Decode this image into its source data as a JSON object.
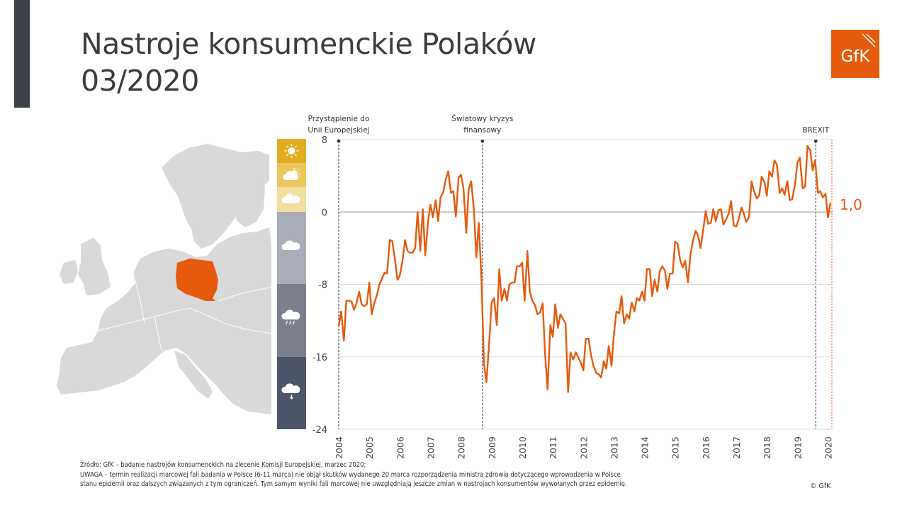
{
  "title_line1": "Nastroje konsumenckie Polaków",
  "title_line2": "03/2020",
  "logo_text": "GfK",
  "colors": {
    "brand": "#e55a0c",
    "dark_bar": "#3e4148",
    "map_gray": "#d9d9d9",
    "weather": [
      "#e1ad1e",
      "#ecc760",
      "#f3dea2",
      "#a9adb7",
      "#7b808c",
      "#4d5568"
    ]
  },
  "weather_icons": [
    "sun-icon",
    "sun-cloud-icon",
    "cloud-icon",
    "cloud-icon",
    "rain-cloud-icon",
    "storm-cloud-icon"
  ],
  "chart_data": {
    "type": "line",
    "ylim": [
      -24,
      8
    ],
    "yticks": [
      "8",
      "0",
      "-8",
      "-16",
      "-24"
    ],
    "xticks": [
      "2004",
      "2005",
      "2006",
      "2007",
      "2008",
      "2009",
      "2010",
      "2011",
      "2012",
      "2013",
      "2014",
      "2015",
      "2016",
      "2017",
      "2018",
      "2019",
      "2020"
    ],
    "annotations": [
      {
        "label_lines": [
          "Przystąpienie do",
          "Unii Europejskiej"
        ],
        "x": 2004.0
      },
      {
        "label_lines": [
          "Światowy kryzys",
          "finansowy"
        ],
        "x": 2008.7
      },
      {
        "label_lines": [
          "BREXIT"
        ],
        "x": 2019.6
      }
    ],
    "last_value_label": "1,0",
    "series": [
      {
        "color": "#e55a0c",
        "values": [
          [
            2004.0,
            -12.6
          ],
          [
            2004.08,
            -11.0
          ],
          [
            2004.17,
            -14.2
          ],
          [
            2004.25,
            -9.8
          ],
          [
            2004.33,
            -9.8
          ],
          [
            2004.42,
            -9.9
          ],
          [
            2004.5,
            -10.8
          ],
          [
            2004.58,
            -10.1
          ],
          [
            2004.67,
            -8.8
          ],
          [
            2004.75,
            -10.2
          ],
          [
            2004.83,
            -10.4
          ],
          [
            2004.92,
            -10.2
          ],
          [
            2005.0,
            -7.8
          ],
          [
            2005.08,
            -11.3
          ],
          [
            2005.17,
            -10.0
          ],
          [
            2005.25,
            -9.2
          ],
          [
            2005.33,
            -8.0
          ],
          [
            2005.42,
            -7.3
          ],
          [
            2005.5,
            -6.7
          ],
          [
            2005.58,
            -6.8
          ],
          [
            2005.67,
            -3.1
          ],
          [
            2005.75,
            -3.2
          ],
          [
            2005.83,
            -5.0
          ],
          [
            2005.92,
            -7.5
          ],
          [
            2006.0,
            -7.0
          ],
          [
            2006.08,
            -5.5
          ],
          [
            2006.17,
            -3.1
          ],
          [
            2006.25,
            -4.3
          ],
          [
            2006.33,
            -4.5
          ],
          [
            2006.42,
            -4.5
          ],
          [
            2006.5,
            -4.0
          ],
          [
            2006.58,
            0.0
          ],
          [
            2006.67,
            -4.3
          ],
          [
            2006.75,
            0.3
          ],
          [
            2006.83,
            -4.8
          ],
          [
            2006.92,
            -1.1
          ],
          [
            2007.0,
            0.8
          ],
          [
            2007.08,
            -0.6
          ],
          [
            2007.17,
            1.3
          ],
          [
            2007.25,
            -1.0
          ],
          [
            2007.33,
            1.6
          ],
          [
            2007.42,
            2.2
          ],
          [
            2007.5,
            3.6
          ],
          [
            2007.58,
            4.5
          ],
          [
            2007.67,
            2.1
          ],
          [
            2007.75,
            2.3
          ],
          [
            2007.83,
            -0.5
          ],
          [
            2007.92,
            3.8
          ],
          [
            2008.0,
            4.1
          ],
          [
            2008.08,
            2.6
          ],
          [
            2008.17,
            -2.3
          ],
          [
            2008.25,
            2.5
          ],
          [
            2008.33,
            3.4
          ],
          [
            2008.42,
            0.3
          ],
          [
            2008.5,
            -5.0
          ],
          [
            2008.58,
            -1.2
          ],
          [
            2008.67,
            -7.5
          ],
          [
            2008.75,
            -16.8
          ],
          [
            2008.83,
            -18.8
          ],
          [
            2008.92,
            -14.5
          ],
          [
            2009.0,
            -10.0
          ],
          [
            2009.08,
            -9.5
          ],
          [
            2009.17,
            -12.5
          ],
          [
            2009.25,
            -6.3
          ],
          [
            2009.33,
            -9.8
          ],
          [
            2009.42,
            -8.5
          ],
          [
            2009.5,
            -9.8
          ],
          [
            2009.58,
            -8.0
          ],
          [
            2009.67,
            -7.8
          ],
          [
            2009.75,
            -7.8
          ],
          [
            2009.83,
            -6.0
          ],
          [
            2009.92,
            -6.0
          ],
          [
            2010.0,
            -5.6
          ],
          [
            2010.08,
            -9.8
          ],
          [
            2010.17,
            -4.3
          ],
          [
            2010.25,
            -8.8
          ],
          [
            2010.33,
            -9.8
          ],
          [
            2010.42,
            -10.3
          ],
          [
            2010.5,
            -11.3
          ],
          [
            2010.58,
            -11.1
          ],
          [
            2010.67,
            -10.1
          ],
          [
            2010.75,
            -15.8
          ],
          [
            2010.83,
            -19.6
          ],
          [
            2010.92,
            -12.5
          ],
          [
            2011.0,
            -13.8
          ],
          [
            2011.08,
            -10.2
          ],
          [
            2011.17,
            -12.8
          ],
          [
            2011.25,
            -11.3
          ],
          [
            2011.33,
            -11.8
          ],
          [
            2011.42,
            -12.3
          ],
          [
            2011.5,
            -19.9
          ],
          [
            2011.58,
            -15.5
          ],
          [
            2011.67,
            -16.3
          ],
          [
            2011.75,
            -15.5
          ],
          [
            2011.83,
            -16.0
          ],
          [
            2011.92,
            -16.7
          ],
          [
            2012.0,
            -17.5
          ],
          [
            2012.08,
            -14.0
          ],
          [
            2012.17,
            -14.0
          ],
          [
            2012.25,
            -15.8
          ],
          [
            2012.33,
            -17.0
          ],
          [
            2012.42,
            -17.8
          ],
          [
            2012.5,
            -17.9
          ],
          [
            2012.58,
            -18.3
          ],
          [
            2012.67,
            -16.5
          ],
          [
            2012.75,
            -17.3
          ],
          [
            2012.83,
            -14.8
          ],
          [
            2012.92,
            -17.0
          ],
          [
            2013.0,
            -13.5
          ],
          [
            2013.08,
            -11.0
          ],
          [
            2013.17,
            -11.2
          ],
          [
            2013.25,
            -9.3
          ],
          [
            2013.33,
            -12.3
          ],
          [
            2013.42,
            -11.3
          ],
          [
            2013.5,
            -11.8
          ],
          [
            2013.58,
            -10.0
          ],
          [
            2013.67,
            -11.0
          ],
          [
            2013.75,
            -9.5
          ],
          [
            2013.83,
            -9.8
          ],
          [
            2013.92,
            -8.8
          ],
          [
            2014.0,
            -9.8
          ],
          [
            2014.08,
            -6.3
          ],
          [
            2014.17,
            -6.3
          ],
          [
            2014.25,
            -9.3
          ],
          [
            2014.33,
            -7.5
          ],
          [
            2014.42,
            -8.8
          ],
          [
            2014.5,
            -6.5
          ],
          [
            2014.58,
            -6.0
          ],
          [
            2014.67,
            -6.5
          ],
          [
            2014.75,
            -8.5
          ],
          [
            2014.83,
            -6.8
          ],
          [
            2014.92,
            -6.8
          ],
          [
            2015.0,
            -3.3
          ],
          [
            2015.08,
            -3.5
          ],
          [
            2015.17,
            -5.4
          ],
          [
            2015.25,
            -6.1
          ],
          [
            2015.33,
            -5.4
          ],
          [
            2015.42,
            -7.8
          ],
          [
            2015.5,
            -4.8
          ],
          [
            2015.58,
            -3.2
          ],
          [
            2015.67,
            -2.1
          ],
          [
            2015.75,
            -2.6
          ],
          [
            2015.83,
            -4.0
          ],
          [
            2015.92,
            -2.0
          ],
          [
            2016.0,
            0.1
          ],
          [
            2016.08,
            -1.3
          ],
          [
            2016.17,
            -1.2
          ],
          [
            2016.25,
            0.3
          ],
          [
            2016.33,
            -1.0
          ],
          [
            2016.42,
            0.2
          ],
          [
            2016.5,
            0.3
          ],
          [
            2016.58,
            -1.4
          ],
          [
            2016.67,
            -0.8
          ],
          [
            2016.75,
            -0.2
          ],
          [
            2016.83,
            1.2
          ],
          [
            2016.92,
            -1.5
          ],
          [
            2017.0,
            -1.6
          ],
          [
            2017.08,
            -0.8
          ],
          [
            2017.17,
            0.5
          ],
          [
            2017.25,
            -0.2
          ],
          [
            2017.33,
            -1.1
          ],
          [
            2017.42,
            -0.5
          ],
          [
            2017.5,
            3.4
          ],
          [
            2017.58,
            2.3
          ],
          [
            2017.67,
            1.5
          ],
          [
            2017.75,
            1.8
          ],
          [
            2017.83,
            3.9
          ],
          [
            2017.92,
            3.3
          ],
          [
            2018.0,
            1.8
          ],
          [
            2018.08,
            4.5
          ],
          [
            2018.17,
            3.9
          ],
          [
            2018.25,
            5.7
          ],
          [
            2018.33,
            5.2
          ],
          [
            2018.42,
            2.1
          ],
          [
            2018.5,
            2.6
          ],
          [
            2018.58,
            1.9
          ],
          [
            2018.67,
            3.4
          ],
          [
            2018.75,
            1.3
          ],
          [
            2018.83,
            1.4
          ],
          [
            2018.92,
            3.0
          ],
          [
            2019.0,
            5.5
          ],
          [
            2019.08,
            6.0
          ],
          [
            2019.17,
            2.6
          ],
          [
            2019.25,
            2.8
          ],
          [
            2019.33,
            7.3
          ],
          [
            2019.42,
            6.8
          ],
          [
            2019.5,
            4.6
          ],
          [
            2019.58,
            5.7
          ],
          [
            2019.67,
            2.1
          ],
          [
            2019.75,
            2.3
          ],
          [
            2019.83,
            1.6
          ],
          [
            2019.92,
            2.0
          ],
          [
            2020.0,
            -0.6
          ],
          [
            2020.08,
            1.0
          ]
        ]
      }
    ]
  },
  "footnote_lines": [
    "Źródło: GfK – badanie nastrojów konsumenckich na zlecenie Komisji Europejskiej, marzec 2020;",
    "UWAGA – termin realizacji marcowej fali badania w Polsce (6-11 marca) nie objął skutków wydanego 20 marca rozporządzenia ministra zdrowia dotyczącego wprowadzenia w Polsce",
    "stanu epidemii oraz dalszych związanych z tym ograniczeń. Tym samym wyniki fali marcowej nie uwzględniają jeszcze zmian w nastrojach konsumentów wywołanych przez epidemię."
  ],
  "copyright": "© GfK"
}
